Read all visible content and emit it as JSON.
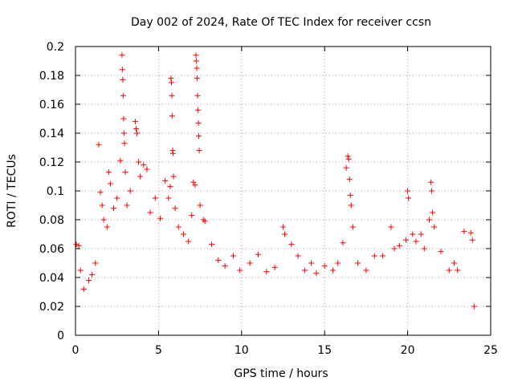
{
  "chart_data": {
    "type": "scatter",
    "title": "Day 002 of 2024, Rate Of TEC Index for receiver ccsn",
    "xlabel": "GPS time / hours",
    "ylabel": "ROTI / TECUs",
    "xlim": [
      0,
      25
    ],
    "ylim": [
      0,
      0.2
    ],
    "x_ticks": [
      0,
      5,
      10,
      15,
      20,
      25
    ],
    "y_ticks": [
      0,
      0.02,
      0.04,
      0.06,
      0.08,
      0.1,
      0.12,
      0.14,
      0.16,
      0.18,
      0.2
    ],
    "x_tick_labels": [
      "0",
      "5",
      "10",
      "15",
      "20",
      "25"
    ],
    "y_tick_labels": [
      "0",
      "0.02",
      "0.04",
      "0.06",
      "0.08",
      "0.1",
      "0.12",
      "0.14",
      "0.16",
      "0.18",
      "0.2"
    ],
    "grid": true,
    "marker": "+",
    "series": [
      {
        "name": "ROTI",
        "color": "#ff0000",
        "points": [
          [
            0.05,
            0.063
          ],
          [
            0.2,
            0.062
          ],
          [
            0.3,
            0.045
          ],
          [
            0.5,
            0.032
          ],
          [
            0.8,
            0.038
          ],
          [
            1.0,
            0.042
          ],
          [
            1.2,
            0.05
          ],
          [
            1.4,
            0.132
          ],
          [
            1.5,
            0.099
          ],
          [
            1.6,
            0.09
          ],
          [
            1.7,
            0.08
          ],
          [
            1.9,
            0.075
          ],
          [
            2.0,
            0.113
          ],
          [
            2.1,
            0.105
          ],
          [
            2.3,
            0.088
          ],
          [
            2.5,
            0.095
          ],
          [
            2.7,
            0.121
          ],
          [
            2.8,
            0.194
          ],
          [
            2.82,
            0.184
          ],
          [
            2.85,
            0.177
          ],
          [
            2.87,
            0.166
          ],
          [
            2.9,
            0.15
          ],
          [
            2.92,
            0.14
          ],
          [
            2.95,
            0.133
          ],
          [
            3.0,
            0.113
          ],
          [
            3.1,
            0.09
          ],
          [
            3.3,
            0.1
          ],
          [
            3.6,
            0.148
          ],
          [
            3.65,
            0.143
          ],
          [
            3.7,
            0.14
          ],
          [
            3.8,
            0.12
          ],
          [
            3.9,
            0.11
          ],
          [
            4.1,
            0.118
          ],
          [
            4.3,
            0.115
          ],
          [
            4.5,
            0.085
          ],
          [
            4.8,
            0.095
          ],
          [
            5.1,
            0.081
          ],
          [
            5.4,
            0.107
          ],
          [
            5.6,
            0.095
          ],
          [
            5.7,
            0.103
          ],
          [
            5.75,
            0.178
          ],
          [
            5.78,
            0.175
          ],
          [
            5.8,
            0.166
          ],
          [
            5.82,
            0.152
          ],
          [
            5.85,
            0.128
          ],
          [
            5.87,
            0.126
          ],
          [
            5.9,
            0.11
          ],
          [
            6.0,
            0.088
          ],
          [
            6.2,
            0.075
          ],
          [
            6.5,
            0.07
          ],
          [
            6.8,
            0.065
          ],
          [
            7.0,
            0.083
          ],
          [
            7.1,
            0.106
          ],
          [
            7.2,
            0.104
          ],
          [
            7.25,
            0.194
          ],
          [
            7.27,
            0.19
          ],
          [
            7.3,
            0.185
          ],
          [
            7.32,
            0.178
          ],
          [
            7.35,
            0.166
          ],
          [
            7.37,
            0.156
          ],
          [
            7.4,
            0.147
          ],
          [
            7.42,
            0.138
          ],
          [
            7.45,
            0.128
          ],
          [
            7.5,
            0.09
          ],
          [
            7.7,
            0.08
          ],
          [
            7.8,
            0.079
          ],
          [
            8.2,
            0.063
          ],
          [
            8.6,
            0.052
          ],
          [
            9.0,
            0.048
          ],
          [
            9.5,
            0.055
          ],
          [
            9.9,
            0.045
          ],
          [
            10.5,
            0.05
          ],
          [
            11.0,
            0.056
          ],
          [
            11.5,
            0.044
          ],
          [
            12.0,
            0.047
          ],
          [
            12.5,
            0.075
          ],
          [
            12.6,
            0.07
          ],
          [
            13.0,
            0.063
          ],
          [
            13.4,
            0.055
          ],
          [
            13.8,
            0.045
          ],
          [
            14.2,
            0.05
          ],
          [
            14.5,
            0.043
          ],
          [
            15.0,
            0.048
          ],
          [
            15.5,
            0.045
          ],
          [
            15.8,
            0.05
          ],
          [
            16.1,
            0.064
          ],
          [
            16.3,
            0.116
          ],
          [
            16.4,
            0.124
          ],
          [
            16.45,
            0.122
          ],
          [
            16.5,
            0.108
          ],
          [
            16.55,
            0.097
          ],
          [
            16.6,
            0.09
          ],
          [
            16.7,
            0.075
          ],
          [
            17.0,
            0.05
          ],
          [
            17.5,
            0.045
          ],
          [
            18.0,
            0.055
          ],
          [
            18.5,
            0.055
          ],
          [
            19.0,
            0.075
          ],
          [
            19.2,
            0.06
          ],
          [
            19.5,
            0.062
          ],
          [
            19.9,
            0.066
          ],
          [
            20.0,
            0.1
          ],
          [
            20.05,
            0.095
          ],
          [
            20.3,
            0.07
          ],
          [
            20.5,
            0.065
          ],
          [
            20.8,
            0.07
          ],
          [
            21.0,
            0.06
          ],
          [
            21.3,
            0.08
          ],
          [
            21.4,
            0.106
          ],
          [
            21.45,
            0.1
          ],
          [
            21.5,
            0.085
          ],
          [
            21.6,
            0.075
          ],
          [
            22.0,
            0.058
          ],
          [
            22.5,
            0.045
          ],
          [
            22.8,
            0.05
          ],
          [
            23.0,
            0.045
          ],
          [
            23.4,
            0.072
          ],
          [
            23.8,
            0.071
          ],
          [
            23.9,
            0.066
          ],
          [
            24.0,
            0.02
          ]
        ]
      }
    ]
  }
}
